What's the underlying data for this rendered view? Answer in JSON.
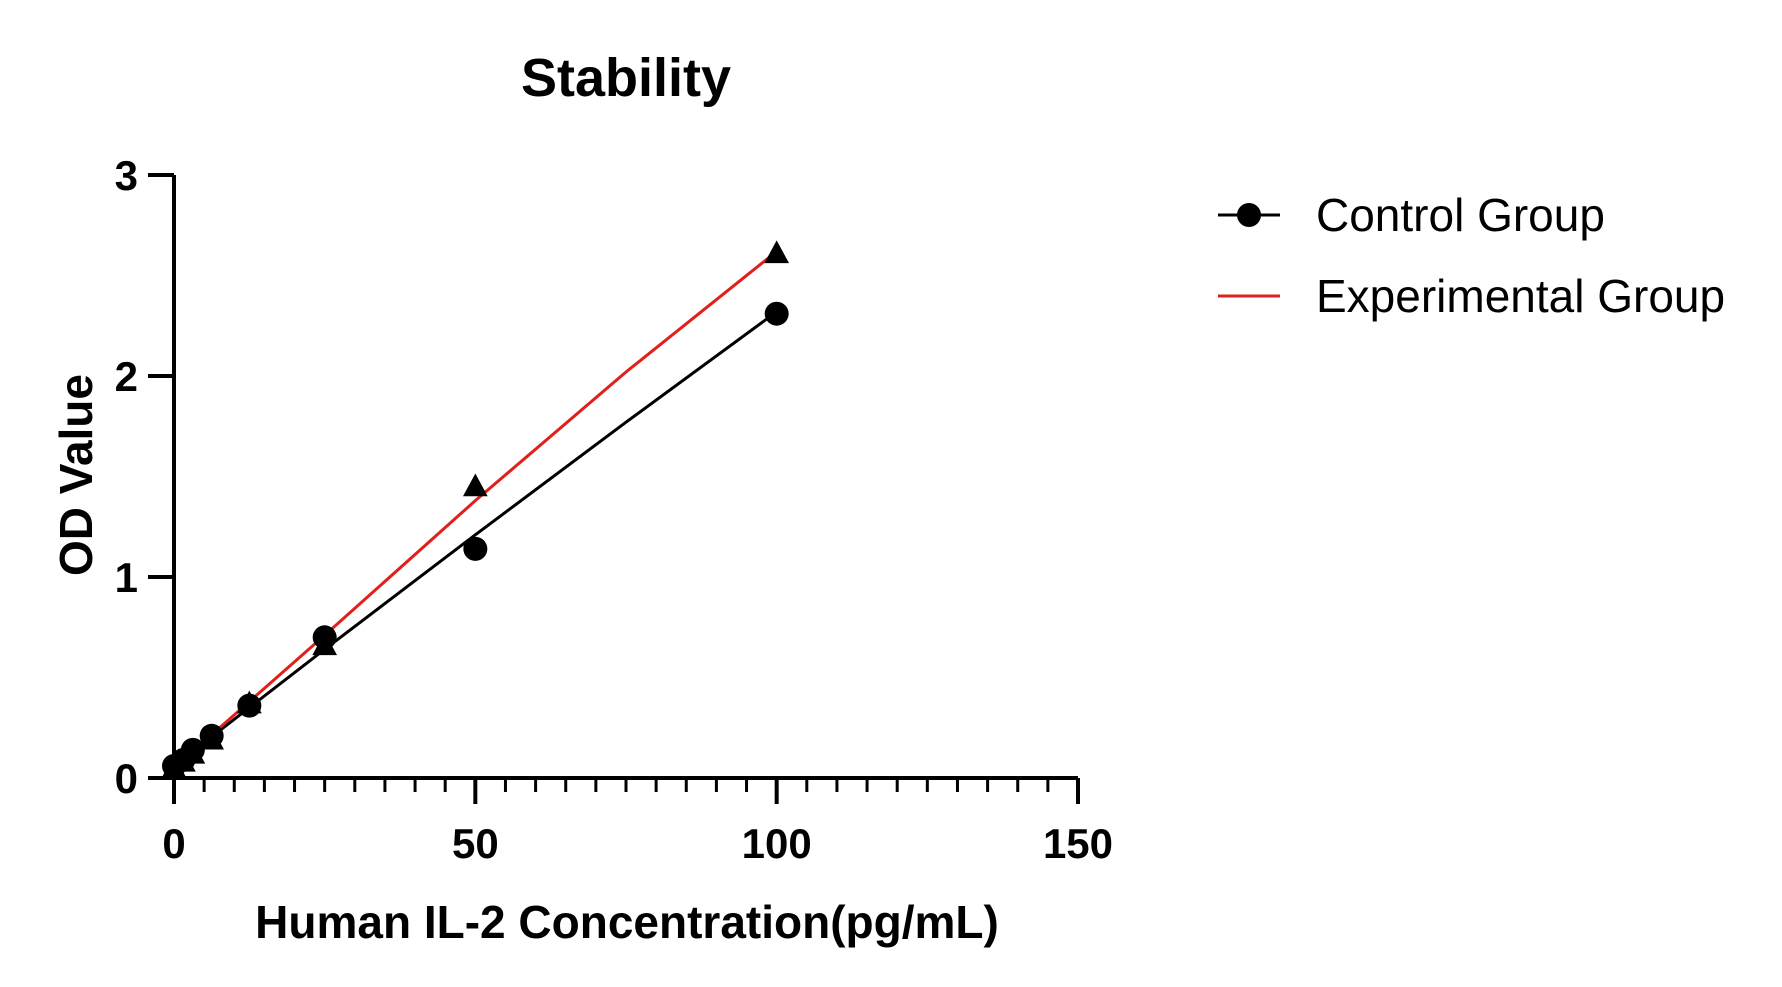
{
  "chart_data": {
    "type": "line",
    "title": "Stability",
    "xlabel": "Human IL-2 Concentration(pg/mL)",
    "ylabel": "OD Value",
    "xlim": [
      0,
      150
    ],
    "ylim": [
      0,
      3
    ],
    "x_major_ticks": [
      0,
      50,
      100,
      150
    ],
    "x_tick_labels": [
      "0",
      "50",
      "100",
      "150"
    ],
    "x_minor_step": 5,
    "y_major_ticks": [
      0,
      1,
      2,
      3
    ],
    "y_tick_labels": [
      "0",
      "1",
      "2",
      "3"
    ],
    "grid": false,
    "legend_position": "right",
    "series": [
      {
        "name": "Control Group",
        "color": "#000000",
        "marker": "circle",
        "points": [
          {
            "x": 0,
            "y": 0.06
          },
          {
            "x": 1.56,
            "y": 0.09
          },
          {
            "x": 3.13,
            "y": 0.14
          },
          {
            "x": 6.25,
            "y": 0.21
          },
          {
            "x": 12.5,
            "y": 0.36
          },
          {
            "x": 25,
            "y": 0.7
          },
          {
            "x": 50,
            "y": 1.14
          },
          {
            "x": 100,
            "y": 2.31
          }
        ],
        "fit": [
          {
            "x": 0,
            "y": 0.06
          },
          {
            "x": 25,
            "y": 0.64
          },
          {
            "x": 50,
            "y": 1.21
          },
          {
            "x": 75,
            "y": 1.77
          },
          {
            "x": 100,
            "y": 2.32
          }
        ]
      },
      {
        "name": "Experimental Group",
        "color": "#e0201b",
        "marker": "triangle",
        "points": [
          {
            "x": 0,
            "y": 0.05
          },
          {
            "x": 1.56,
            "y": 0.08
          },
          {
            "x": 3.13,
            "y": 0.12
          },
          {
            "x": 6.25,
            "y": 0.19
          },
          {
            "x": 12.5,
            "y": 0.37
          },
          {
            "x": 25,
            "y": 0.66
          },
          {
            "x": 50,
            "y": 1.45
          },
          {
            "x": 100,
            "y": 2.61
          }
        ],
        "fit": [
          {
            "x": 0,
            "y": 0.05
          },
          {
            "x": 12.5,
            "y": 0.38
          },
          {
            "x": 25,
            "y": 0.71
          },
          {
            "x": 50,
            "y": 1.38
          },
          {
            "x": 75,
            "y": 2.02
          },
          {
            "x": 100,
            "y": 2.62
          }
        ]
      }
    ]
  }
}
